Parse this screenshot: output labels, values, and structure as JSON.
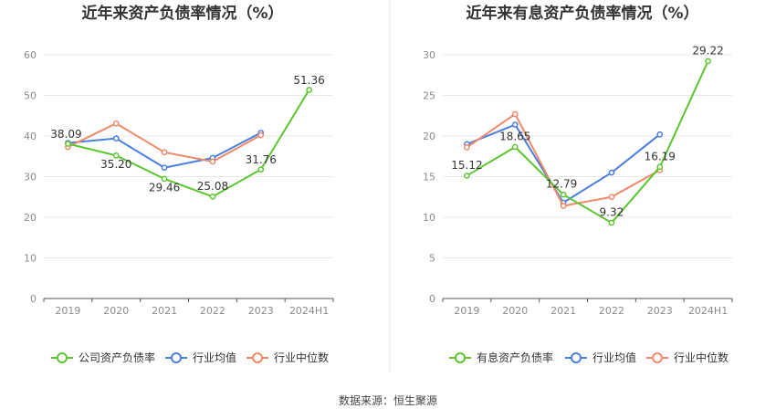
{
  "footer": {
    "source": "数据来源：恒生聚源"
  },
  "chart_data": [
    {
      "type": "line",
      "title": "近年来资产负债率情况（%）",
      "categories": [
        "2019",
        "2020",
        "2021",
        "2022",
        "2023",
        "2024H1"
      ],
      "ylim": [
        0,
        60
      ],
      "yticks": [
        0,
        10,
        20,
        30,
        40,
        50,
        60
      ],
      "grid": true,
      "legend_position": "bottom",
      "series": [
        {
          "name": "公司资产负债率",
          "color": "#5cc531",
          "values": [
            38.09,
            35.2,
            29.46,
            25.08,
            31.76,
            51.36
          ],
          "labels": [
            "38.09",
            "35.20",
            "29.46",
            "25.08",
            "31.76",
            "51.36"
          ]
        },
        {
          "name": "行业均值",
          "color": "#4a7fe0",
          "values": [
            38.3,
            39.4,
            32.2,
            34.6,
            40.8,
            null
          ]
        },
        {
          "name": "行业中位数",
          "color": "#f0896a",
          "values": [
            37.3,
            43.1,
            36.0,
            33.7,
            40.2,
            null
          ]
        }
      ]
    },
    {
      "type": "line",
      "title": "近年来有息资产负债率情况（%）",
      "categories": [
        "2019",
        "2020",
        "2021",
        "2022",
        "2023",
        "2024H1"
      ],
      "ylim": [
        0,
        30
      ],
      "yticks": [
        0,
        5,
        10,
        15,
        20,
        25,
        30
      ],
      "grid": true,
      "legend_position": "bottom",
      "series": [
        {
          "name": "有息资产负债率",
          "color": "#5cc531",
          "values": [
            15.12,
            18.65,
            12.79,
            9.32,
            16.19,
            29.22
          ],
          "labels": [
            "15.12",
            "18.65",
            "12.79",
            "9.32",
            "16.19",
            "29.22"
          ]
        },
        {
          "name": "行业均值",
          "color": "#4a7fe0",
          "values": [
            19.0,
            21.4,
            11.8,
            15.5,
            20.2,
            null
          ]
        },
        {
          "name": "行业中位数",
          "color": "#f0896a",
          "values": [
            18.6,
            22.7,
            11.4,
            12.5,
            15.8,
            null
          ]
        }
      ]
    }
  ]
}
